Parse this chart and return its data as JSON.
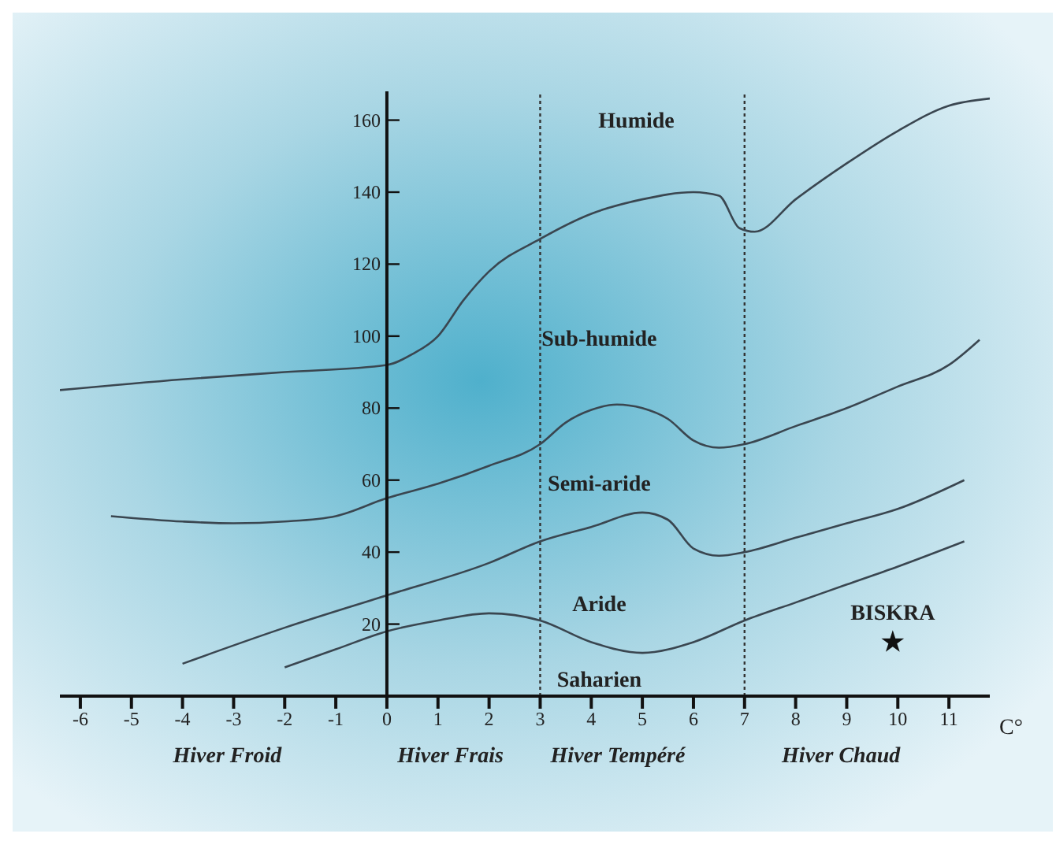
{
  "chart_data": {
    "type": "line",
    "xlabel": "C°",
    "xlim": [
      -6.4,
      11.8
    ],
    "xticks": [
      -6,
      -5,
      -4,
      -3,
      -2,
      -1,
      0,
      1,
      2,
      3,
      4,
      5,
      6,
      7,
      8,
      9,
      10,
      11
    ],
    "ylim": [
      0,
      168
    ],
    "yticks": [
      20,
      40,
      60,
      80,
      100,
      120,
      140,
      160
    ],
    "grid": false,
    "marker": "none",
    "line_style": "solid",
    "series": [
      {
        "color": "#3a4650",
        "x": [
          -6.4,
          -4,
          -2,
          0,
          0.5,
          1,
          1.5,
          2,
          3,
          4,
          5,
          6,
          6.5,
          6.9,
          7.2,
          8,
          9,
          10,
          11,
          11.8
        ],
        "values": [
          85,
          88,
          90,
          92,
          95,
          100,
          110,
          118,
          127,
          134,
          138,
          140,
          139,
          130,
          129,
          138,
          148,
          157,
          164,
          166
        ]
      },
      {
        "color": "#3a4650",
        "x": [
          -5.4,
          -4,
          -3,
          -2,
          -1,
          0,
          1,
          2,
          3,
          3.5,
          4,
          4.5,
          5,
          5.5,
          6,
          6.5,
          7,
          8,
          9,
          10,
          11,
          11.6
        ],
        "values": [
          50,
          48.5,
          48,
          48.5,
          50,
          55,
          59,
          64,
          70,
          76,
          79.5,
          81,
          80,
          77,
          71,
          69,
          70,
          75,
          80,
          86,
          92,
          99
        ]
      },
      {
        "color": "#3a4650",
        "x": [
          -4,
          -2,
          0,
          2,
          3,
          4,
          5,
          5.5,
          6,
          6.5,
          7,
          8,
          9,
          10,
          11.3
        ],
        "values": [
          9,
          19,
          28,
          37,
          43,
          47,
          51,
          49,
          41,
          39,
          40,
          44,
          48,
          52,
          60
        ]
      },
      {
        "color": "#3a4650",
        "x": [
          -2,
          -1,
          0,
          1,
          2,
          3,
          4,
          5,
          6,
          7,
          8,
          9,
          10,
          11.3
        ],
        "values": [
          8,
          13,
          18,
          21,
          23,
          21,
          15,
          12,
          15,
          21,
          26,
          31,
          36,
          43
        ]
      },
      {
        "type": "scatter",
        "name": "BISKRA",
        "marker": "star",
        "color": "#111111",
        "x": [
          9.9
        ],
        "values": [
          15
        ]
      }
    ],
    "ref_lines": [
      {
        "axis": "x",
        "value": 3,
        "line_style": "dotted",
        "color": "#333333"
      },
      {
        "axis": "x",
        "value": 7,
        "line_style": "dotted",
        "color": "#333333"
      }
    ],
    "annotations": [
      "Humide",
      "Sub-humide",
      "Semi-aride",
      "Aride",
      "Saharien",
      "Hiver Froid",
      "Hiver Frais",
      "Hiver Tempéré",
      "Hiver Chaud"
    ]
  }
}
